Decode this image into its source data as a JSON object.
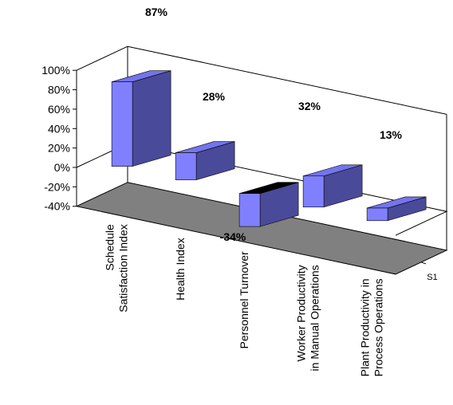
{
  "chart_data": {
    "type": "bar",
    "categories": [
      [
        "Schedule",
        "Satisfaction Index"
      ],
      [
        "Health Index"
      ],
      [
        "Personnel Turnover"
      ],
      [
        "Worker Productivity",
        "in Manual Operations"
      ],
      [
        "Plant Productivity in",
        "Process Operations"
      ]
    ],
    "series": [
      {
        "name": "S1",
        "values": [
          87,
          28,
          -34,
          32,
          13
        ]
      }
    ],
    "data_labels": [
      "87%",
      "28%",
      "-34%",
      "32%",
      "13%"
    ],
    "y_ticks": [
      -40,
      -20,
      0,
      20,
      40,
      60,
      80,
      100
    ],
    "y_tick_labels": [
      "-40%",
      "-20%",
      "0%",
      "20%",
      "40%",
      "60%",
      "80%",
      "100%"
    ],
    "ylim": [
      -40,
      100
    ],
    "grid": false,
    "legend": "none",
    "style": "3d-column",
    "colors": {
      "front": "#8080ff",
      "side": "#4a4a9a",
      "top": "#7474ee",
      "negative_top": "#000000",
      "floor": "#808080",
      "axis": "#000000"
    }
  }
}
